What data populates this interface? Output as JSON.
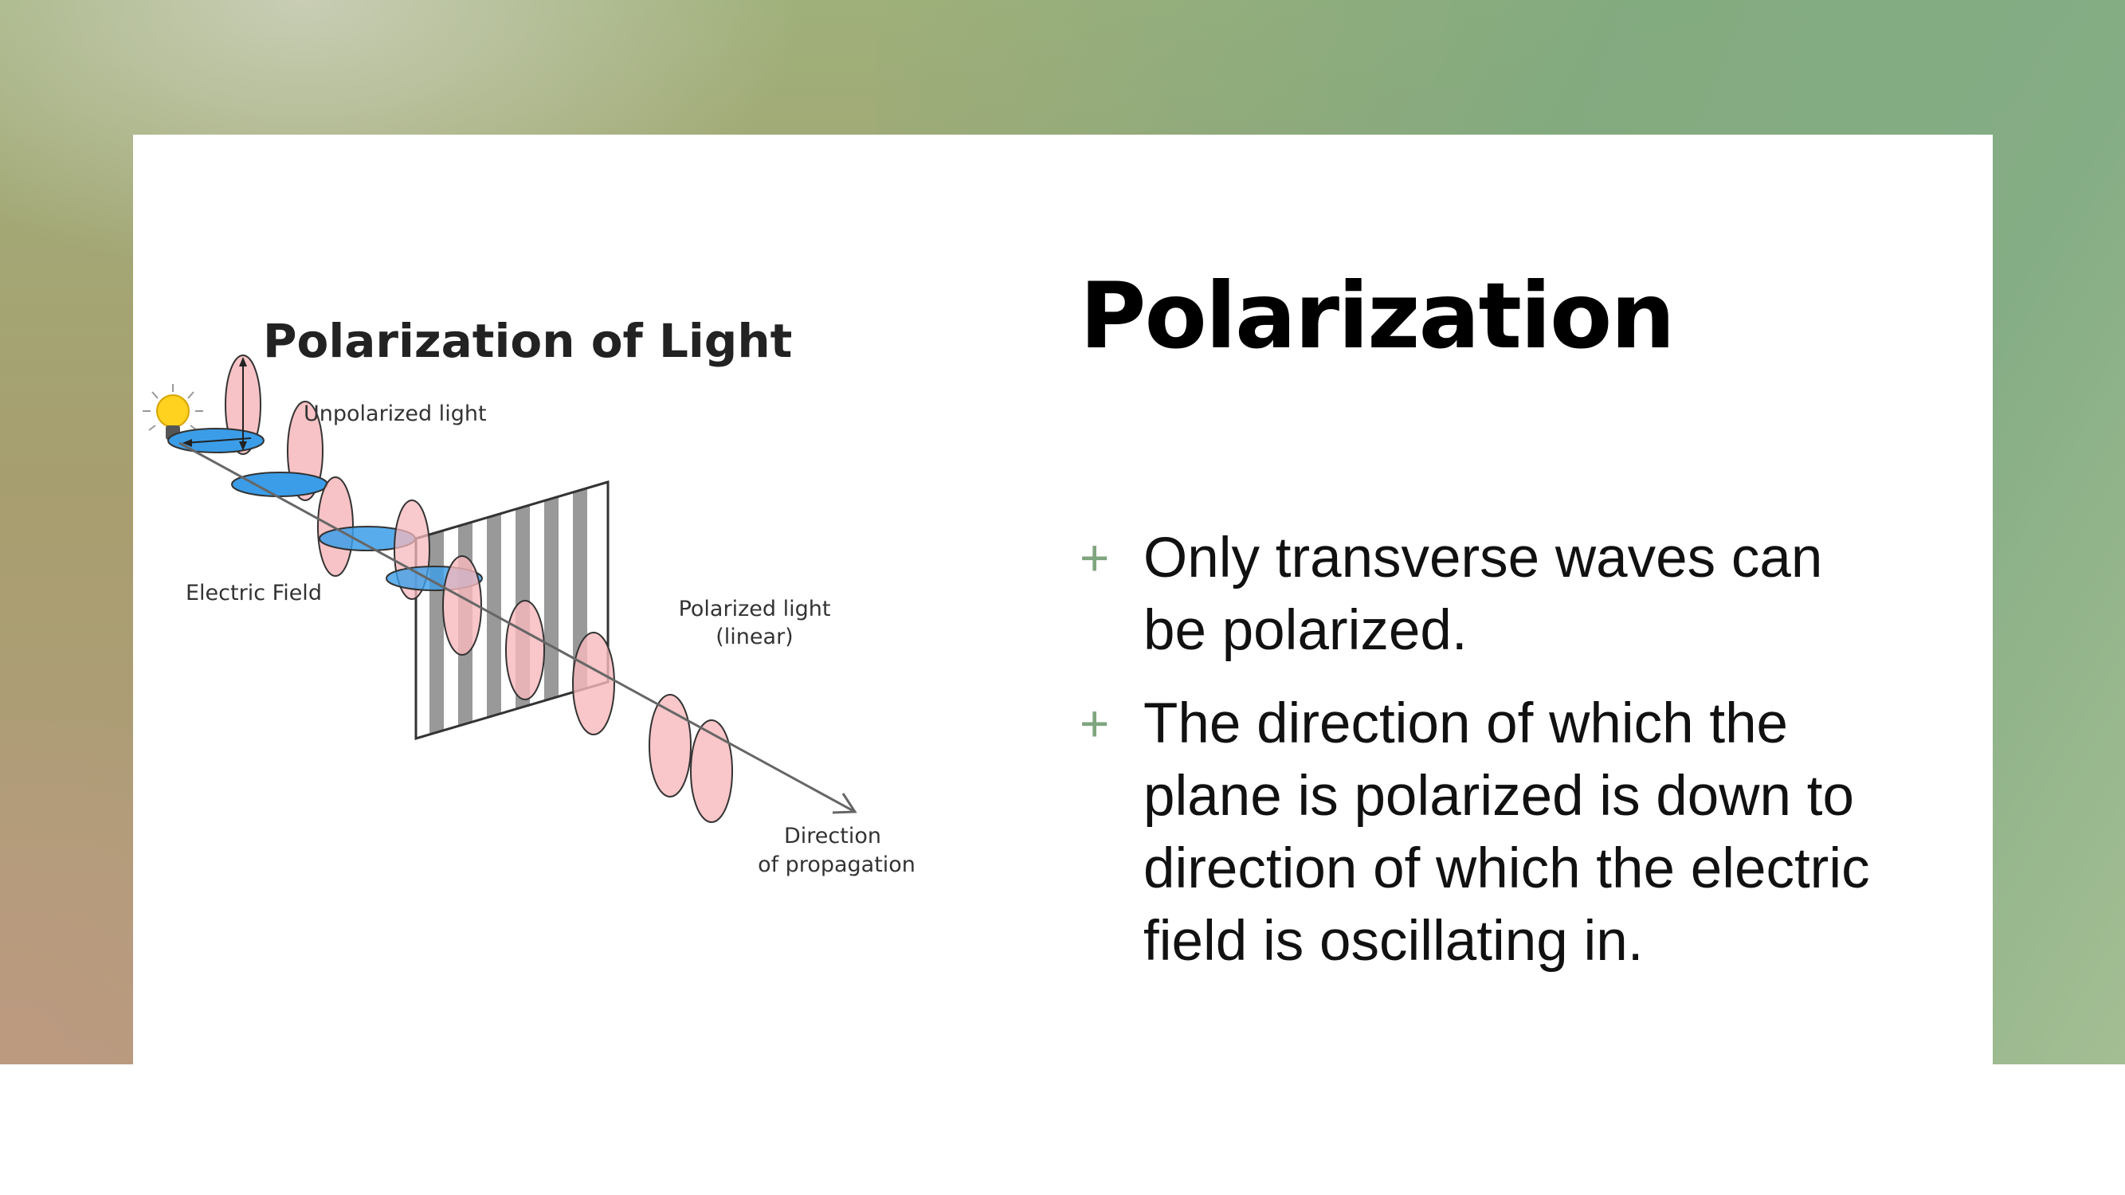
{
  "slide": {
    "title": "Polarization",
    "bullets": [
      "Only transverse waves can be polarized.",
      "The direction of which the plane is polarized is down to direction of which the electric field is oscillating in."
    ],
    "bullet_marker": "+"
  },
  "diagram": {
    "title": "Polarization of Light",
    "labels": {
      "unpolarized": "Unpolarized light",
      "electric_field": "Electric Field",
      "polarized_line1": "Polarized light",
      "polarized_line2": "(linear)",
      "direction_line1": "Direction",
      "direction_line2": "of propagation"
    },
    "icons": [
      "light-bulb-icon"
    ],
    "colors": {
      "wave_pink": "#f7b8bc",
      "wave_blue": "#3b9de8",
      "accent_green": "#7fa57f"
    }
  }
}
